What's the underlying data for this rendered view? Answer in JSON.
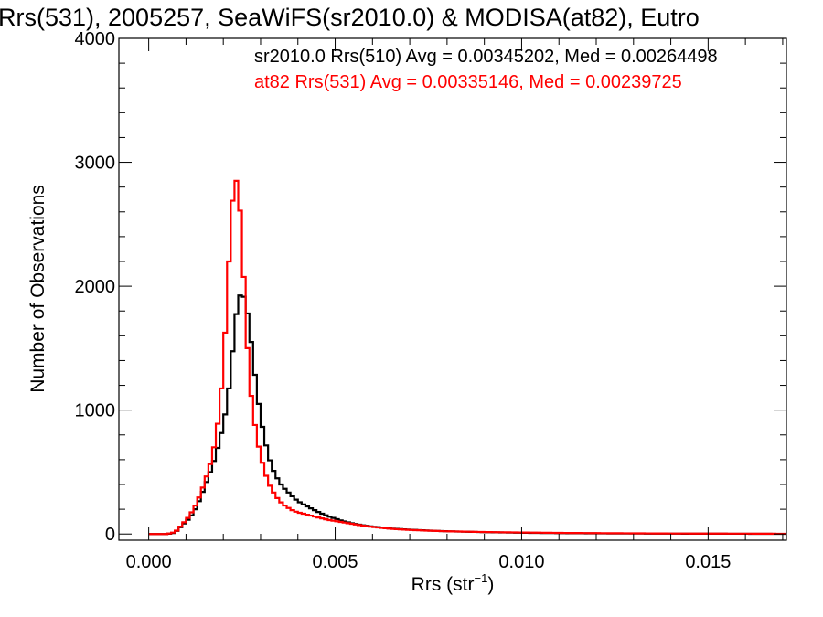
{
  "chart_data": {
    "type": "histogram",
    "title": "Rrs(531), 2005257, SeaWiFS(sr2010.0) & MODISA(at82), Eutro",
    "xlabel": "Rrs (str",
    "xlabel_sup": "−1",
    "xlabel_end": ")",
    "ylabel": "Number of Observations",
    "xlim": [
      -0.0008,
      0.0171
    ],
    "ylim": [
      -50,
      4000
    ],
    "x_ticks": [
      0.0,
      0.005,
      0.01,
      0.015
    ],
    "x_tick_labels": [
      "0.000",
      "0.005",
      "0.010",
      "0.015"
    ],
    "x_minor_step": 0.001,
    "y_ticks": [
      0,
      1000,
      2000,
      3000,
      4000
    ],
    "y_tick_labels": [
      "0",
      "1000",
      "2000",
      "3000",
      "4000"
    ],
    "y_minor_step": 200,
    "grid": false,
    "bin_width": 0.0001,
    "annotations": [
      {
        "text": "sr2010.0 Rrs(510) Avg = 0.00345202, Med = 0.00264498",
        "color": "#000000"
      },
      {
        "text": "at82 Rrs(531) Avg = 0.00335146, Med = 0.00239725",
        "color": "#ff0000"
      }
    ],
    "series": [
      {
        "color": "#000000",
        "points": [
          [
            0.0,
            0
          ],
          [
            0.0005,
            0
          ],
          [
            0.0007,
            10
          ],
          [
            0.0008,
            40
          ],
          [
            0.0009,
            70
          ],
          [
            0.001,
            100
          ],
          [
            0.0011,
            130
          ],
          [
            0.0012,
            170
          ],
          [
            0.0013,
            230
          ],
          [
            0.0014,
            300
          ],
          [
            0.0015,
            380
          ],
          [
            0.0016,
            460
          ],
          [
            0.0017,
            540
          ],
          [
            0.0018,
            640
          ],
          [
            0.0019,
            750
          ],
          [
            0.002,
            880
          ],
          [
            0.0021,
            1050
          ],
          [
            0.0022,
            1300
          ],
          [
            0.0023,
            1650
          ],
          [
            0.0024,
            1900
          ],
          [
            0.0025,
            1950
          ],
          [
            0.0026,
            1880
          ],
          [
            0.0027,
            1680
          ],
          [
            0.0028,
            1420
          ],
          [
            0.0029,
            1150
          ],
          [
            0.003,
            950
          ],
          [
            0.0031,
            780
          ],
          [
            0.0032,
            650
          ],
          [
            0.0033,
            540
          ],
          [
            0.0034,
            480
          ],
          [
            0.0035,
            420
          ],
          [
            0.0036,
            380
          ],
          [
            0.0037,
            350
          ],
          [
            0.0038,
            320
          ],
          [
            0.0039,
            290
          ],
          [
            0.004,
            265
          ],
          [
            0.0042,
            230
          ],
          [
            0.0044,
            200
          ],
          [
            0.0046,
            170
          ],
          [
            0.0048,
            145
          ],
          [
            0.005,
            125
          ],
          [
            0.0052,
            105
          ],
          [
            0.0054,
            90
          ],
          [
            0.0056,
            78
          ],
          [
            0.0058,
            68
          ],
          [
            0.006,
            60
          ],
          [
            0.0063,
            50
          ],
          [
            0.0066,
            42
          ],
          [
            0.007,
            35
          ],
          [
            0.0075,
            28
          ],
          [
            0.008,
            22
          ],
          [
            0.009,
            15
          ],
          [
            0.01,
            10
          ],
          [
            0.011,
            7
          ],
          [
            0.012,
            5
          ],
          [
            0.014,
            3
          ],
          [
            0.016,
            2
          ],
          [
            0.0171,
            1
          ]
        ]
      },
      {
        "color": "#ff0000",
        "points": [
          [
            0.0,
            0
          ],
          [
            0.0005,
            0
          ],
          [
            0.0007,
            15
          ],
          [
            0.0008,
            40
          ],
          [
            0.0009,
            80
          ],
          [
            0.001,
            110
          ],
          [
            0.0011,
            150
          ],
          [
            0.0012,
            200
          ],
          [
            0.0013,
            260
          ],
          [
            0.0014,
            330
          ],
          [
            0.0015,
            420
          ],
          [
            0.0016,
            510
          ],
          [
            0.0017,
            620
          ],
          [
            0.0018,
            780
          ],
          [
            0.0019,
            1000
          ],
          [
            0.002,
            1350
          ],
          [
            0.0021,
            1900
          ],
          [
            0.0022,
            2500
          ],
          [
            0.0023,
            2880
          ],
          [
            0.0024,
            2820
          ],
          [
            0.0025,
            2400
          ],
          [
            0.0026,
            1750
          ],
          [
            0.0027,
            1250
          ],
          [
            0.0028,
            980
          ],
          [
            0.0029,
            780
          ],
          [
            0.003,
            630
          ],
          [
            0.0031,
            520
          ],
          [
            0.0032,
            420
          ],
          [
            0.0033,
            360
          ],
          [
            0.0034,
            310
          ],
          [
            0.0035,
            270
          ],
          [
            0.0036,
            240
          ],
          [
            0.0037,
            220
          ],
          [
            0.0038,
            200
          ],
          [
            0.0039,
            185
          ],
          [
            0.004,
            175
          ],
          [
            0.0042,
            160
          ],
          [
            0.0044,
            145
          ],
          [
            0.0046,
            130
          ],
          [
            0.0048,
            115
          ],
          [
            0.005,
            105
          ],
          [
            0.0052,
            95
          ],
          [
            0.0054,
            85
          ],
          [
            0.0056,
            75
          ],
          [
            0.0058,
            65
          ],
          [
            0.006,
            58
          ],
          [
            0.0063,
            48
          ],
          [
            0.0066,
            40
          ],
          [
            0.007,
            33
          ],
          [
            0.0075,
            27
          ],
          [
            0.008,
            22
          ],
          [
            0.009,
            16
          ],
          [
            0.01,
            12
          ],
          [
            0.011,
            9
          ],
          [
            0.012,
            7
          ],
          [
            0.014,
            4
          ],
          [
            0.016,
            3
          ],
          [
            0.0171,
            2
          ]
        ]
      }
    ]
  }
}
